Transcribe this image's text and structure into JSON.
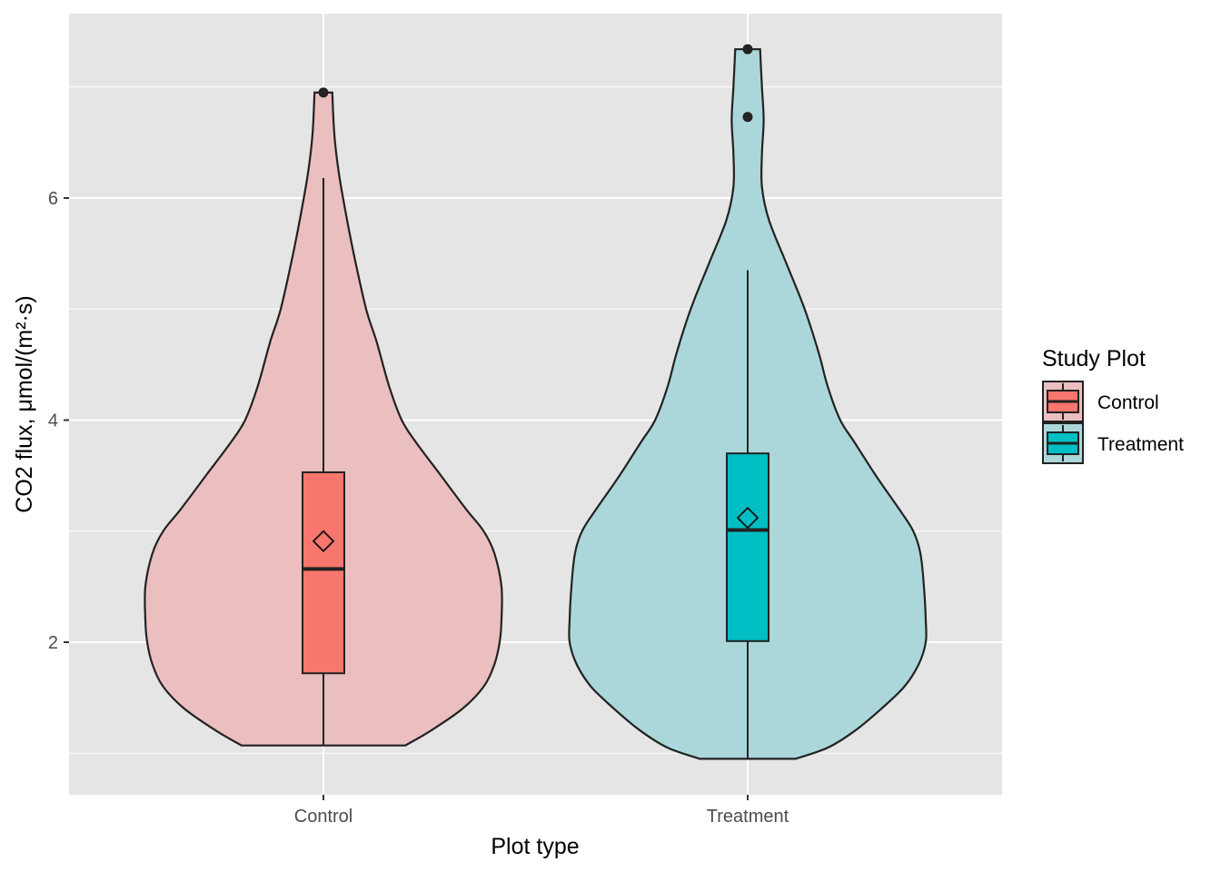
{
  "chart_data": {
    "type": "violin",
    "title": "",
    "xlabel": "Plot type",
    "ylabel": "CO2 flux, μmol/(m²·s)",
    "categories": [
      "Control",
      "Treatment"
    ],
    "y_ticks": [
      2,
      4,
      6
    ],
    "ylim": [
      0.7,
      7.6
    ],
    "grid": true,
    "legend": {
      "title": "Study Plot",
      "position": "right",
      "entries": [
        "Control",
        "Treatment"
      ]
    },
    "series": [
      {
        "name": "Control",
        "fill_color": "#F8766D",
        "violin_fill": "#EBBFC0",
        "violin": {
          "y": [
            1.07,
            1.2,
            1.4,
            1.6,
            1.8,
            2.0,
            2.2,
            2.5,
            2.8,
            3.0,
            3.2,
            3.5,
            3.8,
            4.0,
            4.3,
            4.7,
            5.0,
            5.5,
            6.0,
            6.3,
            6.6,
            6.95
          ],
          "density": [
            0.46,
            0.6,
            0.78,
            0.9,
            0.96,
            0.99,
            1.0,
            1.0,
            0.96,
            0.9,
            0.8,
            0.66,
            0.52,
            0.44,
            0.37,
            0.3,
            0.24,
            0.17,
            0.11,
            0.08,
            0.06,
            0.05
          ]
        },
        "box": {
          "lower_whisker": 1.07,
          "q1": 1.72,
          "median": 2.66,
          "q3": 3.53,
          "upper_whisker": 6.18,
          "mean": 2.91
        },
        "outliers": [
          6.95
        ]
      },
      {
        "name": "Treatment",
        "fill_color": "#00BFC4",
        "violin_fill": "#ABD7DA",
        "violin": {
          "y": [
            0.95,
            1.05,
            1.2,
            1.4,
            1.6,
            1.8,
            2.0,
            2.2,
            2.5,
            2.8,
            3.0,
            3.2,
            3.5,
            3.8,
            4.0,
            4.3,
            4.6,
            5.0,
            5.4,
            5.8,
            6.1,
            6.4,
            6.7,
            7.0,
            7.34
          ],
          "density": [
            0.27,
            0.45,
            0.6,
            0.75,
            0.88,
            0.96,
            1.0,
            1.0,
            0.99,
            0.97,
            0.93,
            0.85,
            0.72,
            0.6,
            0.52,
            0.45,
            0.4,
            0.32,
            0.22,
            0.12,
            0.08,
            0.08,
            0.09,
            0.08,
            0.07
          ]
        },
        "box": {
          "lower_whisker": 0.95,
          "q1": 2.01,
          "median": 3.01,
          "q3": 3.7,
          "upper_whisker": 5.35,
          "mean": 3.12
        },
        "outliers": [
          6.73,
          7.34
        ]
      }
    ]
  }
}
